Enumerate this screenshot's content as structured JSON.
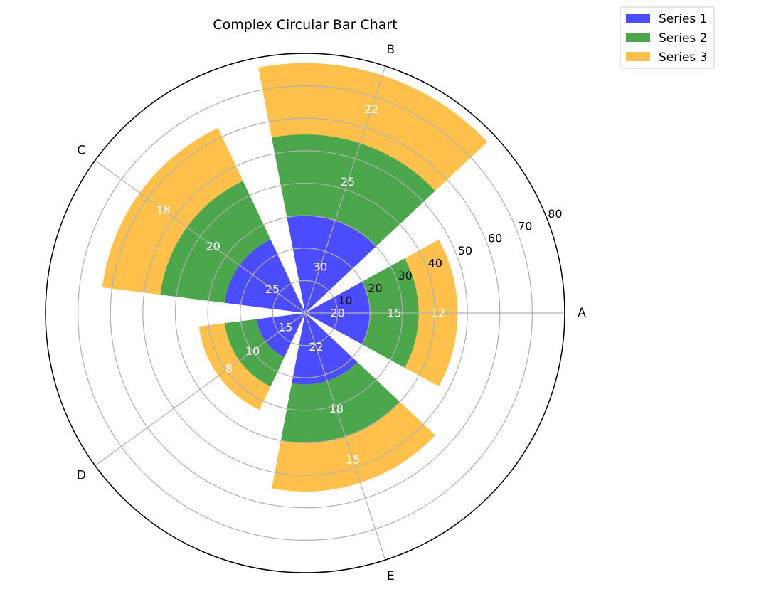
{
  "chart_data": {
    "type": "bar",
    "subtype": "polar-stacked",
    "title": "Complex Circular Bar Chart",
    "categories": [
      "A",
      "B",
      "C",
      "D",
      "E"
    ],
    "series": [
      {
        "name": "Series 1",
        "color": "#0000FF",
        "values": [
          20,
          30,
          25,
          15,
          22
        ]
      },
      {
        "name": "Series 2",
        "color": "#008000",
        "values": [
          15,
          25,
          20,
          10,
          18
        ]
      },
      {
        "name": "Series 3",
        "color": "#FFA500",
        "values": [
          12,
          22,
          18,
          8,
          15
        ]
      }
    ],
    "bar_labels": [
      [
        "20",
        "30",
        "25",
        "15",
        "22"
      ],
      [
        "15",
        "25",
        "20",
        "10",
        "18"
      ],
      [
        "12",
        "22",
        "18",
        "8",
        "15"
      ]
    ],
    "radial_ticks": [
      "10",
      "20",
      "30",
      "40",
      "50",
      "60",
      "70",
      "80"
    ],
    "rlim": [
      0,
      80
    ],
    "grid": true,
    "legend_position": "top-right"
  }
}
